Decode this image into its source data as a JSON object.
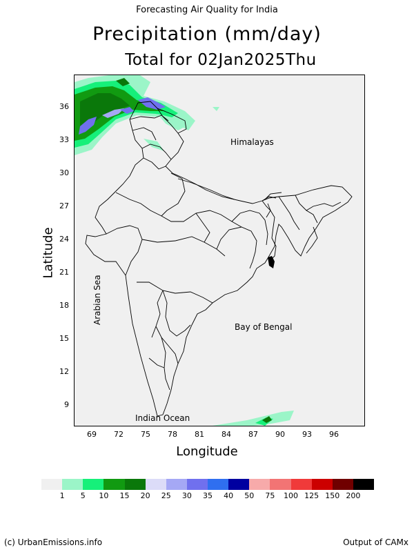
{
  "header": {
    "top_caption": "Forecasting Air Quality for India",
    "title": "Precipitation (mm/day)",
    "subtitle": "Total for 02Jan2025Thu"
  },
  "map": {
    "type": "precipitation-map",
    "x_axis": {
      "label": "Longitude",
      "ticks": [
        "69",
        "72",
        "75",
        "78",
        "81",
        "84",
        "87",
        "90",
        "93",
        "96"
      ]
    },
    "y_axis": {
      "label": "Latitude",
      "ticks": [
        "36",
        "33",
        "30",
        "27",
        "24",
        "21",
        "18",
        "15",
        "12",
        "9"
      ]
    },
    "background_color": "#f0f0f0",
    "annotations": {
      "himalayas": "Himalayas",
      "arabian_sea": "Arabian Sea",
      "bay_of_bengal": "Bay of Bengal",
      "indian_ocean": "Indian Ocean"
    }
  },
  "legend": {
    "colors": [
      "#f0f0f0",
      "#9bf5c8",
      "#16f07a",
      "#119a11",
      "#0a780a",
      "#dcdcf8",
      "#a5a8f5",
      "#7070ee",
      "#2f6ff0",
      "#0000a0",
      "#f7aaaa",
      "#f27474",
      "#f03a3a",
      "#cc0000",
      "#700000",
      "#000000"
    ],
    "labels": [
      "1",
      "5",
      "10",
      "15",
      "20",
      "25",
      "30",
      "35",
      "40",
      "50",
      "75",
      "100",
      "125",
      "150",
      "200"
    ]
  },
  "footer": {
    "left": "(c) UrbanEmissions.info",
    "right": "Output of CAMx"
  }
}
